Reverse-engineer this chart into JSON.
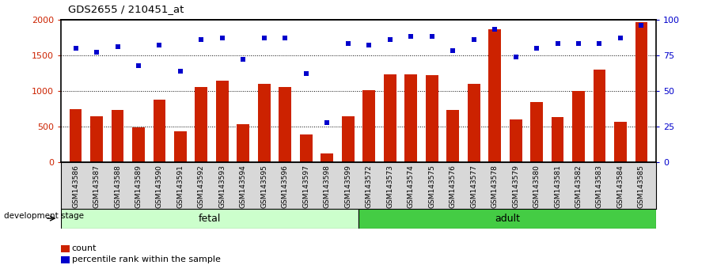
{
  "title": "GDS2655 / 210451_at",
  "categories": [
    "GSM143586",
    "GSM143587",
    "GSM143588",
    "GSM143589",
    "GSM143590",
    "GSM143591",
    "GSM143592",
    "GSM143593",
    "GSM143594",
    "GSM143595",
    "GSM143596",
    "GSM143597",
    "GSM143598",
    "GSM143599",
    "GSM143572",
    "GSM143573",
    "GSM143574",
    "GSM143575",
    "GSM143576",
    "GSM143577",
    "GSM143578",
    "GSM143579",
    "GSM143580",
    "GSM143581",
    "GSM143582",
    "GSM143583",
    "GSM143584",
    "GSM143585"
  ],
  "counts": [
    750,
    645,
    740,
    490,
    880,
    440,
    1060,
    1140,
    530,
    1100,
    1060,
    390,
    120,
    650,
    1010,
    1230,
    1230,
    1220,
    740,
    1100,
    1870,
    600,
    850,
    630,
    1000,
    1300,
    570,
    1960
  ],
  "percentiles": [
    80,
    77,
    81,
    68,
    82,
    64,
    86,
    87,
    72,
    87,
    87,
    62,
    28,
    83,
    82,
    86,
    88,
    88,
    78,
    86,
    93,
    74,
    80,
    83,
    83,
    83,
    87,
    96
  ],
  "fetal_count": 14,
  "adult_count": 14,
  "bar_color": "#cc2200",
  "dot_color": "#0000cc",
  "fetal_color": "#ccffcc",
  "adult_color": "#44cc44",
  "stage_label_fetal": "fetal",
  "stage_label_adult": "adult",
  "development_stage_label": "development stage",
  "legend_count": "count",
  "legend_percentile": "percentile rank within the sample",
  "ylim_left": [
    0,
    2000
  ],
  "ylim_right": [
    0,
    100
  ],
  "yticks_left": [
    0,
    500,
    1000,
    1500,
    2000
  ],
  "yticks_right": [
    0,
    25,
    50,
    75,
    100
  ],
  "grid_values": [
    500,
    1000,
    1500
  ],
  "background_color": "#ffffff",
  "tick_area_color": "#d8d8d8"
}
